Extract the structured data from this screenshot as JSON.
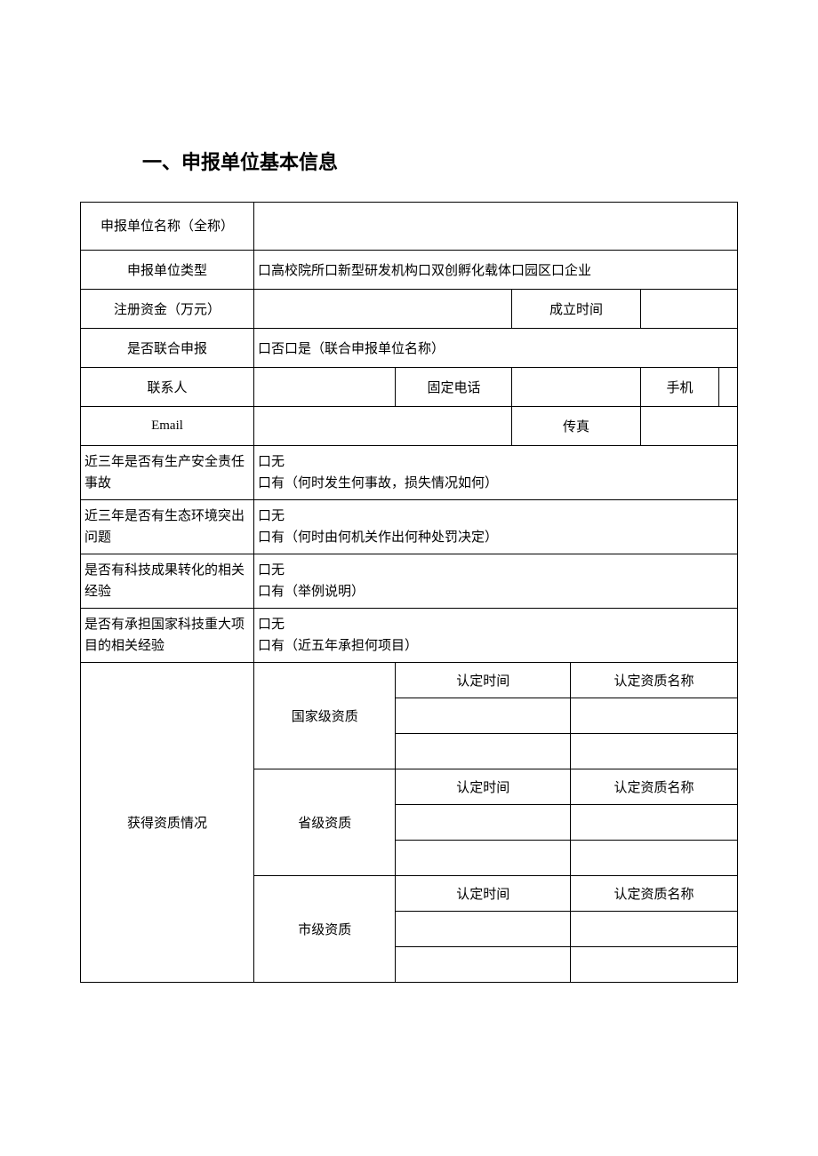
{
  "title": "一、申报单位基本信息",
  "rows": {
    "unit_name_label": "申报单位名称（全称）",
    "unit_type_label": "申报单位类型",
    "unit_type_value": "口高校院所口新型研发机构口双创孵化载体口园区口企业",
    "reg_capital_label": "注册资金（万元）",
    "est_time_label": "成立时间",
    "joint_label": "是否联合申报",
    "joint_value": "口否口是（联合申报单位名称）",
    "contact_label": "联系人",
    "fixed_phone_label": "固定电话",
    "mobile_label": "手机",
    "email_label": "Email",
    "fax_label": "传真",
    "safety_label": "近三年是否有生产安全责任事故",
    "safety_line1": "口无",
    "safety_line2": "口有（何时发生何事故，损失情况如何）",
    "eco_label": "近三年是否有生态环境突出问题",
    "eco_line1": "口无",
    "eco_line2": "口有（何时由何机关作出何种处罚决定）",
    "tech_label": "是否有科技成果转化的相关经验",
    "tech_line1": "口无",
    "tech_line2": "口有（举例说明）",
    "proj_label": "是否有承担国家科技重大项目的相关经验",
    "proj_line1": "口无",
    "proj_line2": "口有（近五年承担何项目）",
    "qual_label": "获得资质情况",
    "national_qual": "国家级资质",
    "provincial_qual": "省级资质",
    "city_qual": "市级资质",
    "cert_time": "认定时间",
    "cert_name": "认定资质名称"
  },
  "style": {
    "background_color": "#ffffff",
    "text_color": "#000000",
    "border_color": "#000000",
    "title_fontsize": 22,
    "body_fontsize": 15,
    "font_family": "SimSun"
  }
}
